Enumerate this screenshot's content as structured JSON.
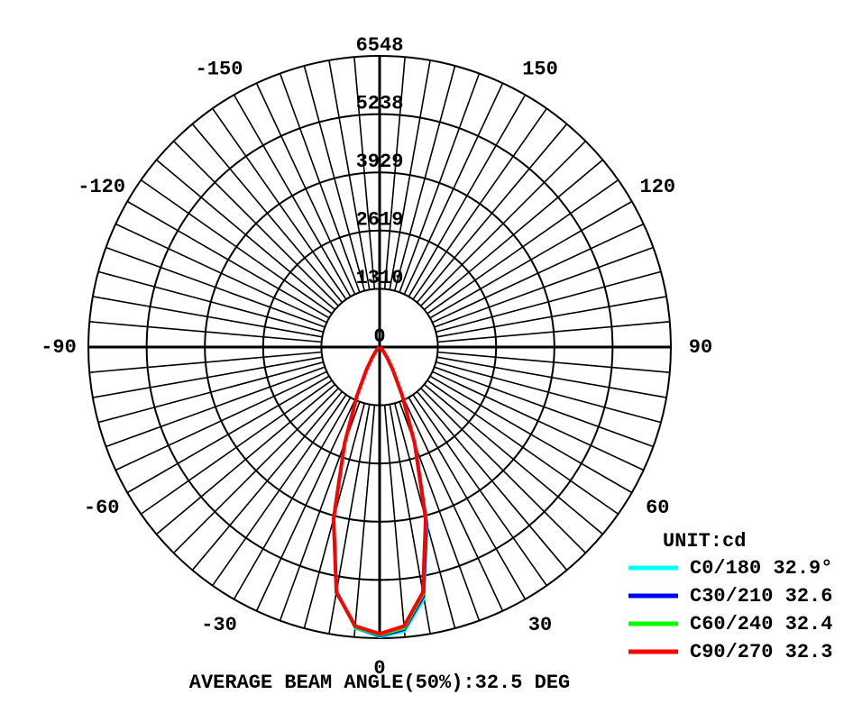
{
  "chart_data": {
    "type": "polar",
    "title": "AVERAGE BEAM ANGLE(50%):32.5 DEG",
    "unit_label": "UNIT:cd",
    "rlim": [
      0,
      6548
    ],
    "rticks": [
      0,
      1310,
      2619,
      3929,
      5238,
      6548
    ],
    "thetaticks": [
      -150,
      -120,
      -90,
      -60,
      -30,
      0,
      30,
      60,
      90,
      120,
      150
    ],
    "theta_grid_step": 5,
    "x": [
      -60,
      -55,
      -50,
      -45,
      -40,
      -35,
      -30,
      -25,
      -20,
      -15,
      -10,
      -5,
      0,
      5,
      10,
      15,
      20,
      25,
      30,
      35,
      40,
      45,
      50,
      55,
      60
    ],
    "series": [
      {
        "name": "C0/180 32.9°",
        "color": "#00ffff",
        "values": [
          10,
          20,
          40,
          80,
          150,
          300,
          580,
          1150,
          2250,
          3950,
          5550,
          6350,
          6520,
          6420,
          5750,
          4150,
          2400,
          1250,
          620,
          310,
          160,
          85,
          42,
          20,
          10
        ]
      },
      {
        "name": "C30/210 32.6",
        "color": "#0000ff",
        "values": [
          10,
          20,
          40,
          80,
          150,
          300,
          590,
          1180,
          2280,
          3980,
          5580,
          6330,
          6500,
          6380,
          5700,
          4100,
          2350,
          1220,
          610,
          305,
          155,
          82,
          41,
          20,
          10
        ]
      },
      {
        "name": "C60/240 32.4",
        "color": "#00ff00",
        "values": [
          10,
          20,
          40,
          80,
          150,
          300,
          600,
          1190,
          2300,
          4000,
          5600,
          6330,
          6480,
          6350,
          5650,
          4050,
          2320,
          1210,
          600,
          300,
          150,
          80,
          40,
          20,
          10
        ]
      },
      {
        "name": "C90/270 32.3",
        "color": "#ff0000",
        "values": [
          10,
          20,
          40,
          80,
          150,
          300,
          600,
          1200,
          2300,
          4000,
          5600,
          6300,
          6450,
          6300,
          5600,
          4000,
          2300,
          1200,
          600,
          300,
          150,
          80,
          40,
          20,
          10
        ]
      }
    ]
  }
}
